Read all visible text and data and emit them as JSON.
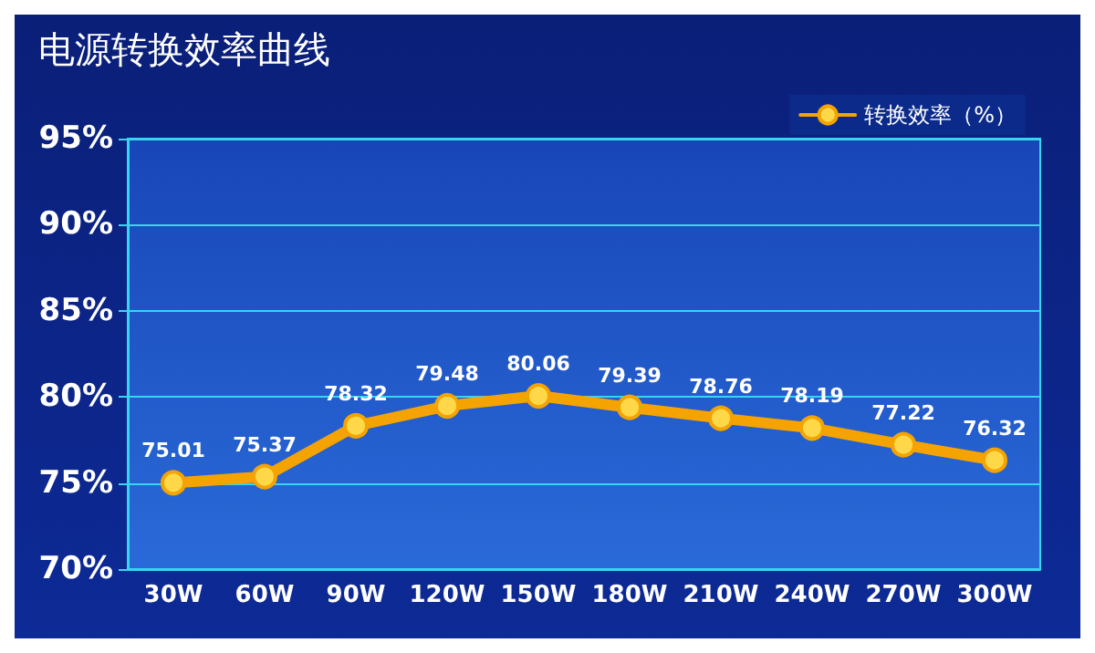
{
  "chart_data": {
    "type": "line",
    "title": "电源转换效率曲线",
    "categories": [
      "30W",
      "60W",
      "90W",
      "120W",
      "150W",
      "180W",
      "210W",
      "240W",
      "270W",
      "300W"
    ],
    "series": [
      {
        "name": "转换效率（%）",
        "color": "#f5a300",
        "values": [
          75.01,
          75.37,
          78.32,
          79.48,
          80.06,
          79.39,
          78.76,
          78.19,
          77.22,
          76.32
        ]
      }
    ],
    "ylim": [
      70,
      95
    ],
    "yticks": [
      {
        "value": 70,
        "label": "70%"
      },
      {
        "value": 75,
        "label": "75%"
      },
      {
        "value": 80,
        "label": "80%"
      },
      {
        "value": 85,
        "label": "85%"
      },
      {
        "value": 90,
        "label": "90%"
      },
      {
        "value": 95,
        "label": "95%"
      }
    ],
    "grid": "y",
    "legend": "top right",
    "marker": "circle",
    "line_style": "solid",
    "data_labels": true
  }
}
